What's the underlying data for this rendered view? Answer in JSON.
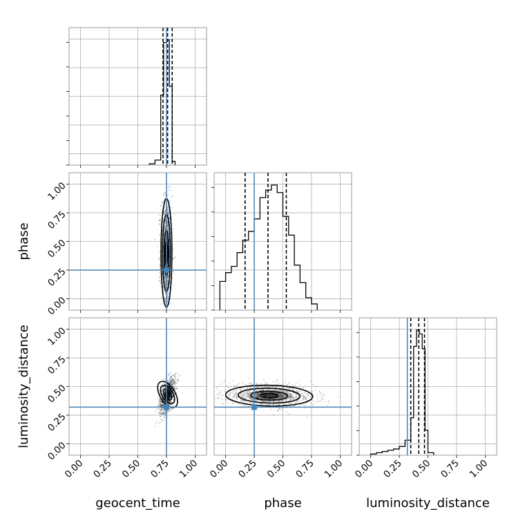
{
  "colors": {
    "truth": "#4682b4",
    "hist": "#000000",
    "grid": "#b0b0b0"
  },
  "chart_data": {
    "type": "corner",
    "parameters": [
      "geocent_time",
      "phase",
      "luminosity_distance"
    ],
    "axis_range": [
      -0.1,
      1.1
    ],
    "ticks": [
      0.0,
      0.25,
      0.5,
      0.75,
      1.0
    ],
    "tick_labels": [
      "0.00",
      "0.25",
      "0.50",
      "0.75",
      "1.00"
    ],
    "truths": {
      "geocent_time": 0.75,
      "phase": 0.25,
      "luminosity_distance": 0.32
    },
    "grid": true,
    "diagonals": [
      {
        "parameter": "geocent_time",
        "bins": [
          0.6,
          0.65,
          0.7,
          0.725,
          0.75,
          0.775,
          0.8,
          0.825
        ],
        "counts": [
          0.01,
          0.04,
          0.56,
          0.98,
          1.0,
          0.63,
          0.03
        ],
        "quantiles": [
          0.72,
          0.76,
          0.8
        ]
      },
      {
        "parameter": "phase",
        "bins": [
          -0.05,
          0.0,
          0.05,
          0.1,
          0.15,
          0.2,
          0.25,
          0.3,
          0.35,
          0.4,
          0.45,
          0.5,
          0.55,
          0.6,
          0.65,
          0.7,
          0.75,
          0.8
        ],
        "counts": [
          0.23,
          0.3,
          0.35,
          0.46,
          0.56,
          0.63,
          0.73,
          0.9,
          0.96,
          1.0,
          0.94,
          0.75,
          0.6,
          0.36,
          0.22,
          0.1,
          0.05
        ],
        "quantiles": [
          0.17,
          0.37,
          0.53
        ]
      },
      {
        "parameter": "luminosity_distance",
        "bins": [
          0.0,
          0.05,
          0.1,
          0.15,
          0.2,
          0.25,
          0.3,
          0.35,
          0.375,
          0.4,
          0.425,
          0.45,
          0.475,
          0.5,
          0.55
        ],
        "counts": [
          0.01,
          0.02,
          0.03,
          0.04,
          0.05,
          0.07,
          0.12,
          0.3,
          0.87,
          1.0,
          0.97,
          0.85,
          0.2,
          0.02
        ],
        "quantiles": [
          0.35,
          0.42,
          0.47
        ]
      }
    ],
    "pairs": [
      {
        "x": "geocent_time",
        "y": "phase",
        "center": [
          0.75,
          0.4
        ],
        "spread": [
          0.025,
          0.25
        ],
        "rho": 0.0,
        "y_clip": [
          -0.05,
          1.0
        ]
      },
      {
        "x": "geocent_time",
        "y": "luminosity_distance",
        "center": [
          0.76,
          0.43
        ],
        "spread": [
          0.035,
          0.08
        ],
        "rho": 0.55,
        "y_clip": [
          -0.05,
          0.62
        ]
      },
      {
        "x": "phase",
        "y": "luminosity_distance",
        "center": [
          0.38,
          0.42
        ],
        "spread": [
          0.2,
          0.05
        ],
        "rho": -0.15,
        "y_clip": [
          0.1,
          0.65
        ]
      }
    ]
  }
}
